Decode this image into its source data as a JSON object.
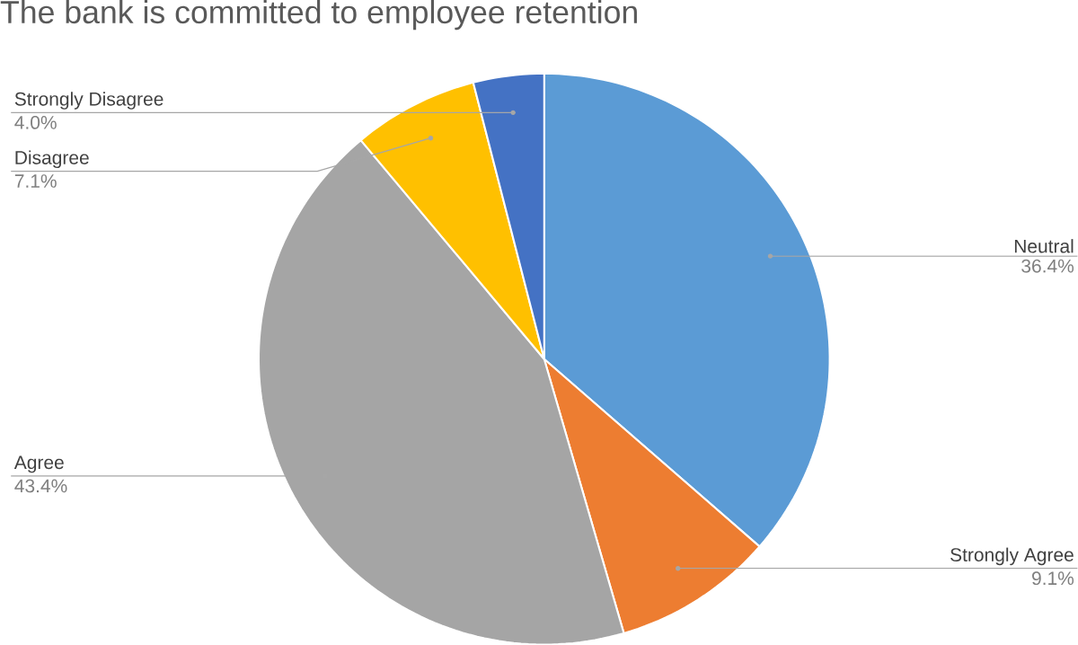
{
  "chart_data": {
    "type": "pie",
    "title": "The bank is committed to employee retention",
    "categories": [
      "Neutral",
      "Strongly Agree",
      "Agree",
      "Disagree",
      "Strongly Disagree"
    ],
    "values": [
      36.4,
      9.1,
      43.4,
      7.1,
      4.0
    ],
    "colors": [
      "#5b9bd5",
      "#ed7d31",
      "#a5a5a5",
      "#ffc000",
      "#4472c4"
    ],
    "value_labels": [
      "36.4%",
      "9.1%",
      "43.4%",
      "7.1%",
      "4.0%"
    ]
  }
}
